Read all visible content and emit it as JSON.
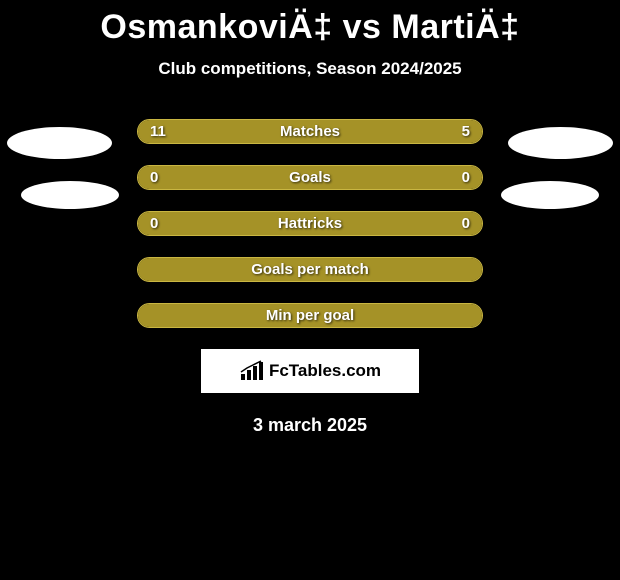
{
  "title": "OsmankoviÄ‡ vs MartiÄ‡",
  "subtitle": "Club competitions, Season 2024/2025",
  "date": "3 march 2025",
  "branding_text": "FcTables.com",
  "colors": {
    "background": "#000000",
    "text": "#ffffff",
    "bar_accent": "#a59227",
    "bar_border": "#c9b642",
    "branding_bg": "#ffffff",
    "branding_text": "#000000"
  },
  "avatars": {
    "shape": "ellipse",
    "fill": "#ffffff"
  },
  "stats": [
    {
      "label": "Matches",
      "left_value": "11",
      "right_value": "5",
      "left_pct": 69,
      "right_pct": 31,
      "left_color": "#a59227",
      "right_color": "#a59227",
      "show_values": true
    },
    {
      "label": "Goals",
      "left_value": "0",
      "right_value": "0",
      "left_pct": 50,
      "right_pct": 50,
      "left_color": "#a59227",
      "right_color": "#a59227",
      "show_values": true
    },
    {
      "label": "Hattricks",
      "left_value": "0",
      "right_value": "0",
      "left_pct": 50,
      "right_pct": 50,
      "left_color": "#a59227",
      "right_color": "#a59227",
      "show_values": true
    },
    {
      "label": "Goals per match",
      "left_value": "",
      "right_value": "",
      "left_pct": 50,
      "right_pct": 50,
      "left_color": "#a59227",
      "right_color": "#a59227",
      "show_values": false
    },
    {
      "label": "Min per goal",
      "left_value": "",
      "right_value": "",
      "left_pct": 50,
      "right_pct": 50,
      "left_color": "#a59227",
      "right_color": "#a59227",
      "show_values": false
    }
  ]
}
